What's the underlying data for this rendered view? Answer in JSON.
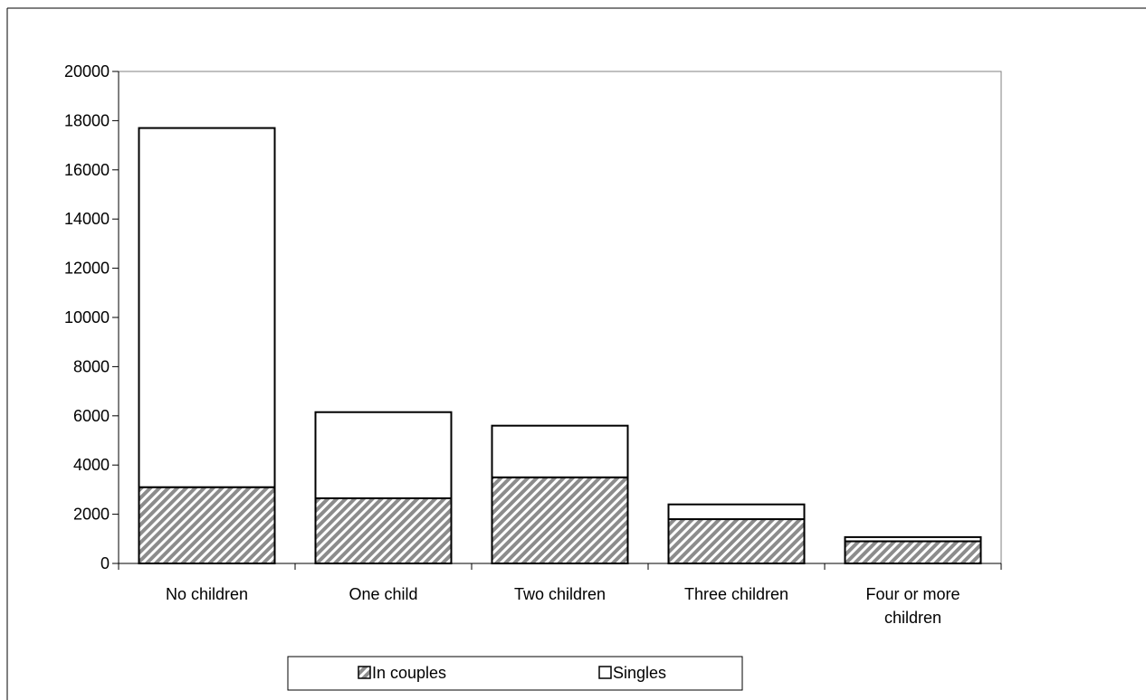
{
  "chart_data": {
    "type": "bar",
    "stacked": true,
    "categories": [
      [
        "No children"
      ],
      [
        "One child"
      ],
      [
        "Two children"
      ],
      [
        "Three children"
      ],
      [
        "Four or more",
        "children"
      ]
    ],
    "series": [
      {
        "name": "In couples",
        "values": [
          3100,
          2650,
          3500,
          1800,
          900
        ],
        "fill": "hatched"
      },
      {
        "name": "Singles",
        "values": [
          14600,
          3500,
          2100,
          600,
          170
        ],
        "fill": "#ffffff"
      }
    ],
    "ylim": [
      0,
      20000
    ],
    "yticks": [
      "0",
      "2000",
      "4000",
      "6000",
      "8000",
      "10000",
      "12000",
      "14000",
      "16000",
      "18000",
      "20000"
    ],
    "ytick_values": [
      0,
      2000,
      4000,
      6000,
      8000,
      10000,
      12000,
      14000,
      16000,
      18000,
      20000
    ],
    "legend_position": "bottom",
    "grid": false
  }
}
